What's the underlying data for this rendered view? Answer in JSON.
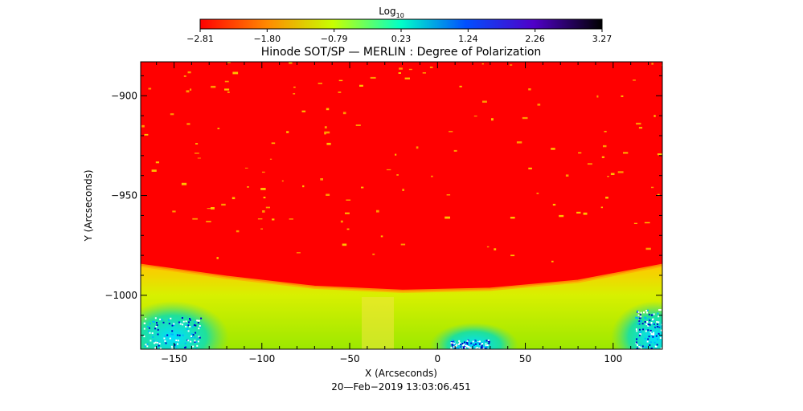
{
  "chart_data": {
    "type": "heatmap",
    "title": "Hinode SOT/SP — MERLIN : Degree of Polarization",
    "xlabel": "X (Arcseconds)",
    "ylabel": "Y (Arcseconds)",
    "xlim": [
      -169,
      128
    ],
    "ylim": [
      -1027,
      -883
    ],
    "x_ticks": [
      -150,
      -100,
      -50,
      0,
      50,
      100
    ],
    "x_tick_labels": [
      "−150",
      "−100",
      "−50",
      "0",
      "50",
      "100"
    ],
    "y_ticks": [
      -900,
      -950,
      -1000
    ],
    "y_tick_labels": [
      "−900",
      "−950",
      "−1000"
    ],
    "colorbar": {
      "label_main": "Log",
      "label_sub": "10",
      "range": [
        -2.81,
        3.27
      ],
      "tick_labels": [
        "−2.81",
        "−1.80",
        "−0.79",
        "0.23",
        "1.24",
        "2.26",
        "3.27"
      ]
    },
    "limb_y_at_x": [
      [
        -169,
        -985
      ],
      [
        -120,
        -991
      ],
      [
        -70,
        -996
      ],
      [
        -20,
        -998
      ],
      [
        30,
        -997
      ],
      [
        80,
        -993
      ],
      [
        128,
        -985
      ]
    ],
    "timestamp": "20—Feb−2019  13:03:06.451"
  },
  "colors": {
    "on_disk": "#ff0000",
    "off_limb_near": "#e6f000",
    "off_limb_far": "#21e07a",
    "outer": "#0000c8"
  }
}
